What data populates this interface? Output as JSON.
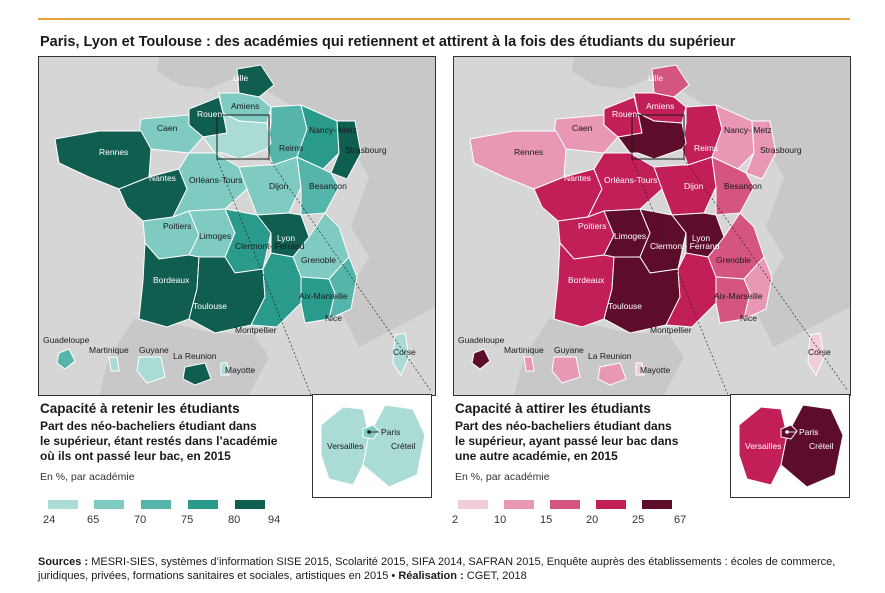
{
  "title": "Paris, Lyon et Toulouse : des académies qui retiennent et attirent à la fois des étudiants du supérieur",
  "colors": {
    "accent_line": "#e8a33d",
    "sea": "#d6d6d6",
    "neighbors": "#c8c8c8",
    "left_scale": [
      "#aadcd5",
      "#80cbc1",
      "#55b5ab",
      "#2a9a8c",
      "#0f5e50"
    ],
    "right_scale": [
      "#f1cdd8",
      "#e897b4",
      "#d4557f",
      "#c21e58",
      "#5e0c2c"
    ]
  },
  "left": {
    "legend_title": "Capacité à retenir les étudiants",
    "legend_desc": [
      "Part des néo-bacheliers étudiant dans",
      "le supérieur, étant restés dans l’académie",
      "où ils ont passé leur bac, en 2015"
    ],
    "legend_unit": "En %, par académie",
    "ticks": [
      "24",
      "65",
      "70",
      "75",
      "80",
      "94"
    ],
    "labels": {
      "lille": "Lille",
      "amiens": "Amiens",
      "rouen": "Rouen",
      "caen": "Caen",
      "rennes": "Rennes",
      "nantes": "Nantes",
      "orleans": "Orléans-Tours",
      "reims": "Reims",
      "nancy": "Nancy-\nMetz",
      "strasbourg": "Strasbourg",
      "dijon": "Dijon",
      "besancon": "Besançon",
      "poitiers": "Poitiers",
      "limoges": "Limoges",
      "clermont": "Clermont-\nFerrand",
      "lyon": "Lyon",
      "grenoble": "Grenoble",
      "bordeaux": "Bordeaux",
      "toulouse": "Toulouse",
      "aix": "Aix-Marseille",
      "nice": "Nice",
      "montpellier": "Montpellier",
      "corse": "Corse",
      "guadeloupe": "Guadeloupe",
      "martinique": "Martinique",
      "guyane": "Guyane",
      "reunion": "La Reunion",
      "mayotte": "Mayotte",
      "paris": "Paris",
      "versailles": "Versailles",
      "creteil": "Créteil"
    }
  },
  "right": {
    "legend_title": "Capacité à attirer les étudiants",
    "legend_desc": [
      "Part des néo-bacheliers étudiant dans",
      "le supérieur, ayant passé leur bac dans",
      "une autre académie, en 2015"
    ],
    "legend_unit": "En %, par académie",
    "ticks": [
      "2",
      "10",
      "15",
      "20",
      "25",
      "67"
    ],
    "labels": {
      "lille": "Lille",
      "amiens": "Amiens",
      "rouen": "Rouen",
      "caen": "Caen",
      "rennes": "Rennes",
      "nantes": "Nantes",
      "orleans": "Orléans-Tours",
      "reims": "Reims",
      "nancy": "Nancy-\nMetz",
      "strasbourg": "Strasbourg",
      "dijon": "Dijon",
      "besancon": "Besançon",
      "poitiers": "Poitiers",
      "limoges": "Limoges",
      "clermont": "Clermont-\nFerrand",
      "lyon": "Lyon",
      "grenoble": "Grenoble",
      "bordeaux": "Bordeaux",
      "toulouse": "Toulouse",
      "aix": "Aix-Marseille",
      "nice": "Nice",
      "montpellier": "Montpellier",
      "corse": "Corse",
      "guadeloupe": "Guadeloupe",
      "martinique": "Martinique",
      "guyane": "Guyane",
      "reunion": "La Reunion",
      "mayotte": "Mayotte",
      "paris": "Paris",
      "versailles": "Versailles",
      "creteil": "Créteil"
    }
  },
  "sources": {
    "label": "Sources :",
    "text": " MESRI-SIES, systèmes d’information SISE 2015, Scolarité 2015, SIFA 2014, SAFRAN 2015, Enquête auprès des établissements : écoles de commerce, juridiques, privées, formations sanitaires et sociales, artistiques en 2015 • ",
    "credit_label": "Réalisation :",
    "credit": " CGET, 2018"
  }
}
